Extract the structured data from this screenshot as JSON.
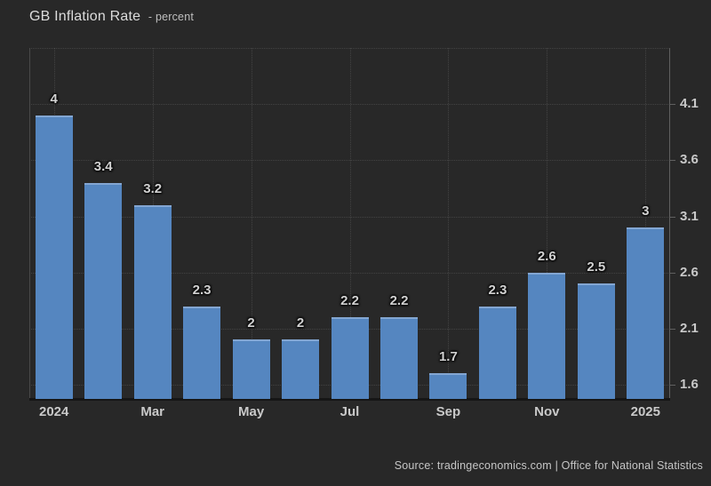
{
  "title": {
    "text": "GB Inflation Rate",
    "suffix": "- percent"
  },
  "source": "Source: tradingeconomics.com | Office for National Statistics",
  "colors": {
    "background": "#282828",
    "bar": "#5586c0",
    "bar_top_edge": "#83a6d2",
    "grid": "rgba(255,255,255,0.13)",
    "axis_line": "#606060",
    "text": "#c9c9c9",
    "title": "#dcdcdc"
  },
  "chart_data": {
    "type": "bar",
    "title": "GB Inflation Rate",
    "subtitle": "percent",
    "grid": "dotted",
    "legend": "none",
    "values": [
      4,
      3.4,
      3.2,
      2.3,
      2,
      2,
      2.2,
      2.2,
      1.7,
      2.3,
      2.6,
      2.5,
      3
    ],
    "bar_labels": [
      "4",
      "3.4",
      "3.2",
      "2.3",
      "2",
      "2",
      "2.2",
      "2.2",
      "1.7",
      "2.3",
      "2.6",
      "2.5",
      "3"
    ],
    "x_axis": {
      "tick_labels": [
        "2024",
        "Mar",
        "May",
        "Jul",
        "Sep",
        "Nov",
        "2025"
      ],
      "tick_bar_indices": [
        0,
        2,
        4,
        6,
        8,
        10,
        12
      ]
    },
    "y_axis": {
      "side": "right",
      "tick_labels": [
        "4.1",
        "3.6",
        "3.1",
        "2.6",
        "2.1",
        "1.6"
      ],
      "tick_values": [
        4.1,
        3.6,
        3.1,
        2.6,
        2.1,
        1.6
      ],
      "grid_values": [
        4.6,
        4.1,
        3.6,
        3.1,
        2.6,
        2.1,
        1.6
      ],
      "min": 1.473,
      "max": 4.6
    }
  }
}
